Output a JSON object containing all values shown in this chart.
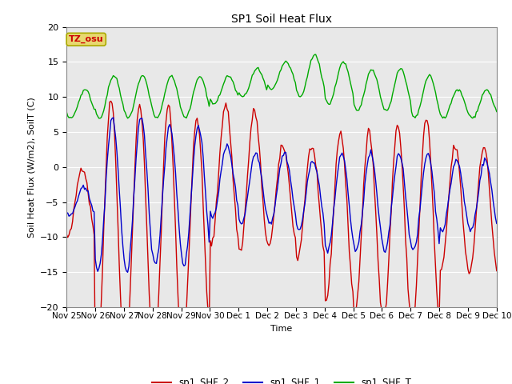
{
  "title": "SP1 Soil Heat Flux",
  "ylabel": "Soil Heat Flux (W/m2), SoilT (C)",
  "xlabel": "Time",
  "ylim": [
    -20,
    20
  ],
  "yticks": [
    -20,
    -15,
    -10,
    -5,
    0,
    5,
    10,
    15,
    20
  ],
  "colors": {
    "shf2": "#cc0000",
    "shf1": "#0000cc",
    "shft": "#00aa00"
  },
  "legend_labels": [
    "sp1_SHF_2",
    "sp1_SHF_1",
    "sp1_SHF_T"
  ],
  "tz_label": "TZ_osu",
  "tz_text_color": "#cc0000",
  "tz_box_color": "#e8d870",
  "background_color": "#e8e8e8",
  "grid_color": "#ffffff",
  "fig_background": "#ffffff",
  "n_days": 15,
  "tick_labels": [
    "Nov 25",
    "Nov 26",
    "Nov 27",
    "Nov 28",
    "Nov 29",
    "Nov 30",
    "Dec 1",
    "Dec 2",
    "Dec 3",
    "Dec 4",
    "Dec 5",
    "Dec 6",
    "Dec 7",
    "Dec 8",
    "Dec 9",
    "Dec 10"
  ],
  "label_fontsize": 7.5,
  "tick_fontsize": 7.5
}
